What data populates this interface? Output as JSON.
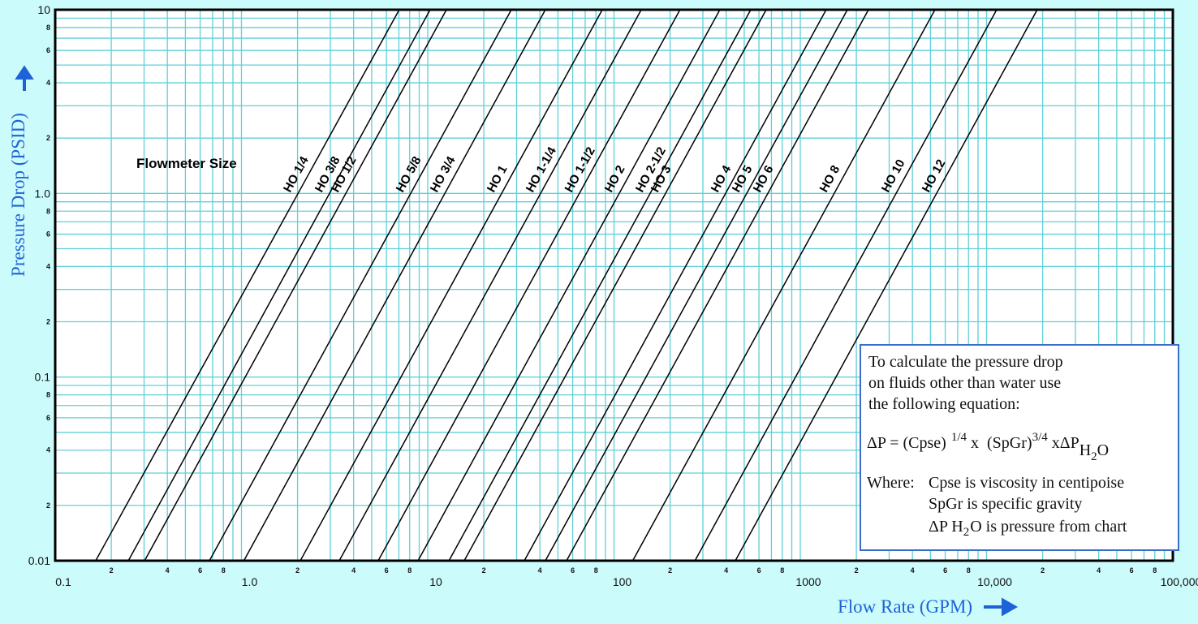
{
  "chart_data": {
    "type": "line",
    "x_label": "Flow Rate (GPM)",
    "y_label": "Pressure Drop (PSID)",
    "annotation": "Flowmeter Size",
    "log_x": true,
    "log_y": true,
    "grid": true,
    "grid_color": "#5fd0d8",
    "xlim": [
      0.1,
      100000
    ],
    "ylim": [
      0.01,
      10
    ],
    "xticks": [
      0.1,
      {
        "value": 0.2,
        "label": "2"
      },
      {
        "value": 0.4,
        "label": "4"
      },
      {
        "value": 0.6,
        "label": "6"
      },
      {
        "value": 0.8,
        "label": "8"
      },
      {
        "value": 1,
        "label": "1.0"
      },
      2,
      4,
      6,
      8,
      10,
      {
        "value": 20,
        "label": "2"
      },
      {
        "value": 40,
        "label": "4"
      },
      {
        "value": 60,
        "label": "6"
      },
      {
        "value": 80,
        "label": "8"
      },
      100,
      {
        "value": 200,
        "label": "2"
      },
      {
        "value": 400,
        "label": "4"
      },
      {
        "value": 600,
        "label": "6"
      },
      {
        "value": 800,
        "label": "8"
      },
      1000,
      {
        "value": 2000,
        "label": "2"
      },
      {
        "value": 4000,
        "label": "4"
      },
      {
        "value": 6000,
        "label": "6"
      },
      {
        "value": 8000,
        "label": "8"
      },
      {
        "value": 10000,
        "label": "10,000"
      },
      {
        "value": 20000,
        "label": "2"
      },
      {
        "value": 40000,
        "label": "4"
      },
      {
        "value": 60000,
        "label": "6"
      },
      {
        "value": 80000,
        "label": "8"
      },
      {
        "value": 100000,
        "label": "100,000"
      }
    ],
    "yticks": [
      0.01,
      {
        "value": 0.02,
        "label": "2"
      },
      {
        "value": 0.04,
        "label": "4"
      },
      {
        "value": 0.06,
        "label": "6"
      },
      {
        "value": 0.08,
        "label": "8"
      },
      0.1,
      {
        "value": 0.2,
        "label": "2"
      },
      {
        "value": 0.4,
        "label": "4"
      },
      {
        "value": 0.6,
        "label": "6"
      },
      {
        "value": 0.8,
        "label": "8"
      },
      {
        "value": 1,
        "label": "1.0"
      },
      2,
      4,
      6,
      8,
      10
    ],
    "series": [
      {
        "name": "HO 1/4",
        "color": "#000000",
        "x": [
          0.165,
          7.03
        ],
        "values": [
          0.01,
          10
        ]
      },
      {
        "name": "HO 3/8",
        "color": "#000000",
        "x": [
          0.247,
          10.3
        ],
        "values": [
          0.01,
          10
        ]
      },
      {
        "name": "HO 1/2",
        "color": "#000000",
        "x": [
          0.302,
          12.6
        ],
        "values": [
          0.01,
          10
        ]
      },
      {
        "name": "HO 5/8",
        "color": "#000000",
        "x": [
          0.673,
          28.1
        ],
        "values": [
          0.01,
          10
        ]
      },
      {
        "name": "HO 3/4",
        "color": "#000000",
        "x": [
          1.03,
          42.8
        ],
        "values": [
          0.01,
          10
        ]
      },
      {
        "name": "HO 1",
        "color": "#000000",
        "x": [
          2.07,
          86.5
        ],
        "values": [
          0.01,
          10
        ]
      },
      {
        "name": "HO 1-1/4",
        "color": "#000000",
        "x": [
          3.35,
          140
        ],
        "values": [
          0.01,
          10
        ]
      },
      {
        "name": "HO 1-1/2",
        "color": "#000000",
        "x": [
          5.42,
          226
        ],
        "values": [
          0.01,
          10
        ]
      },
      {
        "name": "HO 2",
        "color": "#000000",
        "x": [
          8.87,
          370
        ],
        "values": [
          0.01,
          10
        ]
      },
      {
        "name": "HO 2-1/2",
        "color": "#000000",
        "x": [
          13.0,
          542
        ],
        "values": [
          0.01,
          10
        ]
      },
      {
        "name": "HO 3",
        "color": "#000000",
        "x": [
          15.7,
          656
        ],
        "values": [
          0.01,
          10
        ]
      },
      {
        "name": "HO 4",
        "color": "#000000",
        "x": [
          33.0,
          1377
        ],
        "values": [
          0.01,
          10
        ]
      },
      {
        "name": "HO 5",
        "color": "#000000",
        "x": [
          42.8,
          1790
        ],
        "values": [
          0.01,
          10
        ]
      },
      {
        "name": "HO 6",
        "color": "#000000",
        "x": [
          55.6,
          2323
        ],
        "values": [
          0.01,
          10
        ]
      },
      {
        "name": "HO 8",
        "color": "#000000",
        "x": [
          126,
          5285
        ],
        "values": [
          0.01,
          10
        ]
      },
      {
        "name": "HO 10",
        "color": "#000000",
        "x": [
          272,
          11330
        ],
        "values": [
          0.01,
          10
        ]
      },
      {
        "name": "HO 12",
        "color": "#000000",
        "x": [
          448,
          18700
        ],
        "values": [
          0.01,
          10
        ]
      }
    ],
    "note": {
      "lines": [
        "To calculate the pressure drop",
        "on fluids other than water use",
        "the following equation:"
      ],
      "equation": {
        "a": "ΔP = (Cpse)",
        "a_sup": "1/4",
        "b": " x  (SpGr)",
        "b_sup": "3/4",
        "c": " xΔP",
        "c_sub": "H",
        "c_sub2": "2",
        "c_sub3": "O"
      },
      "where": "Where:",
      "where_lines": [
        "Cpse is viscosity in centipoise",
        "SpGr is specific gravity"
      ],
      "last": {
        "a": "ΔP H",
        "sub": "2",
        "b": "O is pressure from chart"
      }
    }
  }
}
